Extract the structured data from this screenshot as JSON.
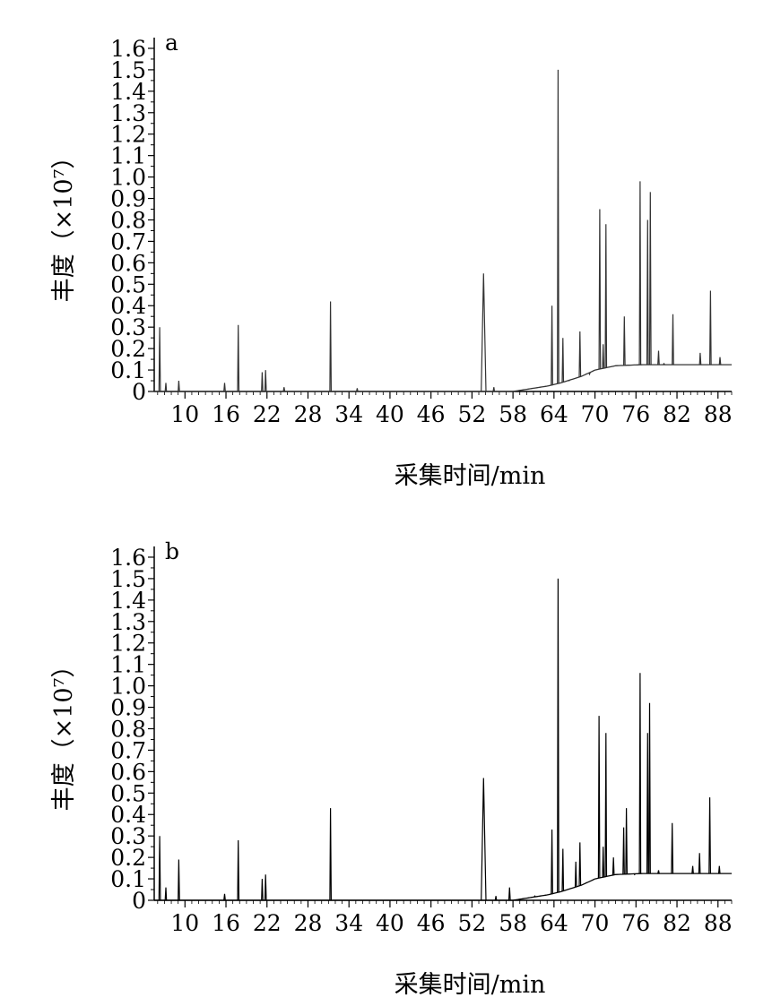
{
  "chart_data": [
    {
      "type": "line",
      "panel_label": "a",
      "xlabel": "采集时间/min",
      "ylabel": "丰度（×10⁷）",
      "xlim": [
        5.5,
        90
      ],
      "ylim": [
        0,
        1.65
      ],
      "x_ticks": [
        10,
        16,
        22,
        28,
        34,
        40,
        46,
        52,
        58,
        64,
        70,
        76,
        82,
        88
      ],
      "y_ticks": [
        "0",
        "0.1",
        "0.2",
        "0.3",
        "0.4",
        "0.5",
        "0.6",
        "0.7",
        "0.8",
        "0.9",
        "1.0",
        "1.1",
        "1.2",
        "1.3",
        "1.4",
        "1.5",
        "1.6"
      ],
      "y_tick_values": [
        0,
        0.1,
        0.2,
        0.3,
        0.4,
        0.5,
        0.6,
        0.7,
        0.8,
        0.9,
        1.0,
        1.1,
        1.2,
        1.3,
        1.4,
        1.5,
        1.6
      ],
      "line_color": "#333333",
      "peaks": [
        [
          6.3,
          0.3
        ],
        [
          7.2,
          0.04
        ],
        [
          9.1,
          0.05
        ],
        [
          15.8,
          0.04
        ],
        [
          17.8,
          0.31
        ],
        [
          21.3,
          0.09
        ],
        [
          21.8,
          0.1
        ],
        [
          24.5,
          0.02
        ],
        [
          31.3,
          0.42
        ],
        [
          35.2,
          0.015
        ],
        [
          53.7,
          0.55
        ],
        [
          55.2,
          0.02
        ],
        [
          63.7,
          0.4
        ],
        [
          64.6,
          1.5
        ],
        [
          65.3,
          0.25
        ],
        [
          66.2,
          0.05
        ],
        [
          67.8,
          0.28
        ],
        [
          69.2,
          0.08
        ],
        [
          70.7,
          0.85
        ],
        [
          71.2,
          0.22
        ],
        [
          71.6,
          0.78
        ],
        [
          74.3,
          0.35
        ],
        [
          76.6,
          0.98
        ],
        [
          77.7,
          0.8
        ],
        [
          78.1,
          0.93
        ],
        [
          79.3,
          0.19
        ],
        [
          80.1,
          0.13
        ],
        [
          81.4,
          0.36
        ],
        [
          85.4,
          0.18
        ],
        [
          86.9,
          0.47
        ],
        [
          88.3,
          0.16
        ]
      ],
      "baseline": [
        [
          5.5,
          0
        ],
        [
          58,
          0
        ],
        [
          61,
          0.015
        ],
        [
          63,
          0.025
        ],
        [
          65,
          0.04
        ],
        [
          68,
          0.07
        ],
        [
          70,
          0.1
        ],
        [
          73,
          0.12
        ],
        [
          77,
          0.125
        ],
        [
          82,
          0.125
        ],
        [
          90,
          0.125
        ]
      ]
    },
    {
      "type": "line",
      "panel_label": "b",
      "xlabel": "采集时间/min",
      "ylabel": "丰度（×10⁷）",
      "xlim": [
        5.5,
        90
      ],
      "ylim": [
        0,
        1.65
      ],
      "x_ticks": [
        10,
        16,
        22,
        28,
        34,
        40,
        46,
        52,
        58,
        64,
        70,
        76,
        82,
        88
      ],
      "y_ticks": [
        "0",
        "0.1",
        "0.2",
        "0.3",
        "0.4",
        "0.5",
        "0.6",
        "0.7",
        "0.8",
        "0.9",
        "1.0",
        "1.1",
        "1.2",
        "1.3",
        "1.4",
        "1.5",
        "1.6"
      ],
      "y_tick_values": [
        0,
        0.1,
        0.2,
        0.3,
        0.4,
        0.5,
        0.6,
        0.7,
        0.8,
        0.9,
        1.0,
        1.1,
        1.2,
        1.3,
        1.4,
        1.5,
        1.6
      ],
      "line_color": "#000000",
      "peaks": [
        [
          6.3,
          0.3
        ],
        [
          7.2,
          0.06
        ],
        [
          9.1,
          0.19
        ],
        [
          15.8,
          0.03
        ],
        [
          17.8,
          0.28
        ],
        [
          21.3,
          0.1
        ],
        [
          21.8,
          0.12
        ],
        [
          31.3,
          0.43
        ],
        [
          53.7,
          0.57
        ],
        [
          55.5,
          0.02
        ],
        [
          57.5,
          0.06
        ],
        [
          61.2,
          0.02
        ],
        [
          63.7,
          0.33
        ],
        [
          64.6,
          1.5
        ],
        [
          65.3,
          0.24
        ],
        [
          67.2,
          0.18
        ],
        [
          67.8,
          0.27
        ],
        [
          70.6,
          0.86
        ],
        [
          71.2,
          0.25
        ],
        [
          71.6,
          0.78
        ],
        [
          72.7,
          0.2
        ],
        [
          74.2,
          0.34
        ],
        [
          74.6,
          0.43
        ],
        [
          75.8,
          0.12
        ],
        [
          76.6,
          1.06
        ],
        [
          77.7,
          0.78
        ],
        [
          78.0,
          0.92
        ],
        [
          79.3,
          0.14
        ],
        [
          81.3,
          0.36
        ],
        [
          84.3,
          0.16
        ],
        [
          85.3,
          0.22
        ],
        [
          86.8,
          0.48
        ],
        [
          88.2,
          0.16
        ]
      ],
      "baseline": [
        [
          5.5,
          0
        ],
        [
          58,
          0
        ],
        [
          61,
          0.015
        ],
        [
          63,
          0.025
        ],
        [
          65,
          0.04
        ],
        [
          68,
          0.07
        ],
        [
          70,
          0.1
        ],
        [
          73,
          0.12
        ],
        [
          77,
          0.125
        ],
        [
          82,
          0.125
        ],
        [
          90,
          0.125
        ]
      ]
    }
  ]
}
